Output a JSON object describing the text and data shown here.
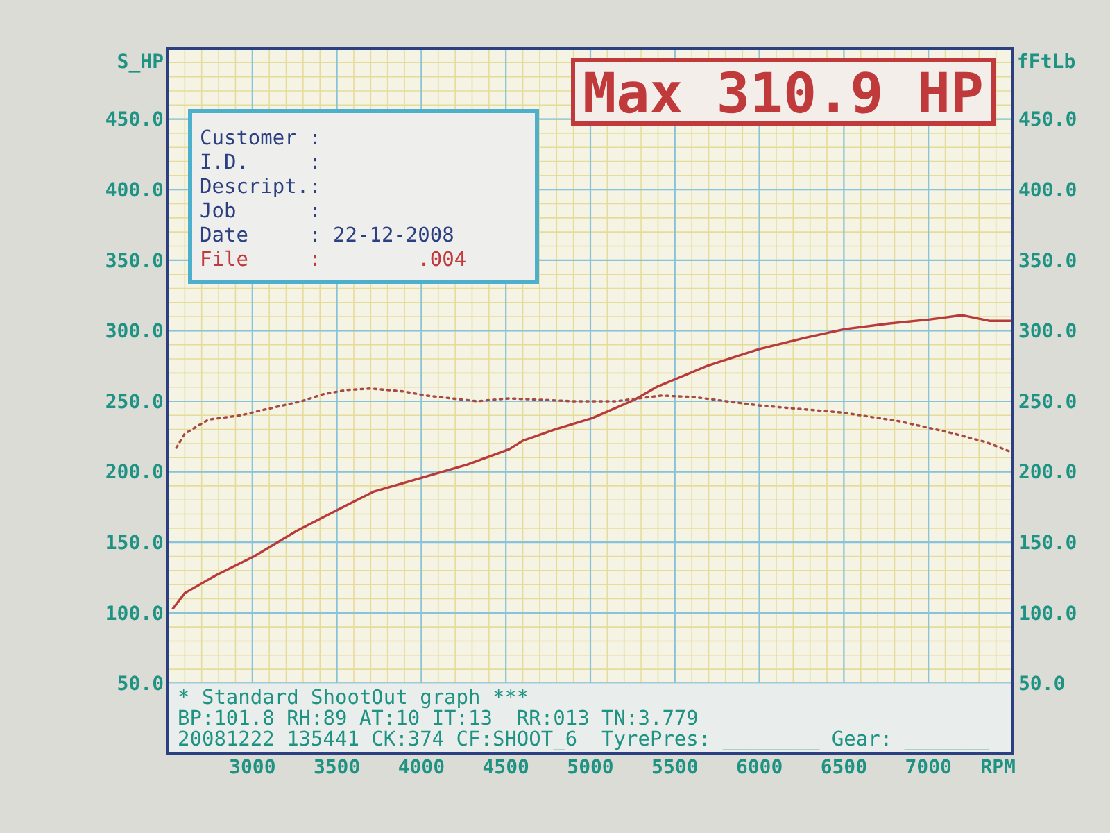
{
  "chart_data": {
    "type": "line",
    "xlabel": "RPM",
    "ylabel": "S_HP",
    "y2label": "fFtLb",
    "xlim": [
      2500,
      7500
    ],
    "xticks": [
      3000,
      3500,
      4000,
      4500,
      5000,
      5500,
      6000,
      6500,
      7000
    ],
    "ylim": [
      0,
      500
    ],
    "yticks": [
      {
        "value": 50,
        "label": "50.0"
      },
      {
        "value": 100,
        "label": "100.0"
      },
      {
        "value": 150,
        "label": "150.0"
      },
      {
        "value": 200,
        "label": "200.0"
      },
      {
        "value": 250,
        "label": "250.0"
      },
      {
        "value": 300,
        "label": "300.0"
      },
      {
        "value": 350,
        "label": "350.0"
      },
      {
        "value": 400,
        "label": "400.0"
      },
      {
        "value": 450,
        "label": "450.0"
      }
    ],
    "y2lim": [
      0,
      500
    ],
    "y2ticks": [
      {
        "value": 50,
        "label": "50.0"
      },
      {
        "value": 100,
        "label": "100.0"
      },
      {
        "value": 150,
        "label": "150.0"
      },
      {
        "value": 200,
        "label": "200.0"
      },
      {
        "value": 250,
        "label": "250.0"
      },
      {
        "value": 300,
        "label": "300.0"
      },
      {
        "value": 350,
        "label": "350.0"
      },
      {
        "value": 400,
        "label": "400.0"
      },
      {
        "value": 450,
        "label": "450.0"
      }
    ],
    "grid": true,
    "series": [
      {
        "color": "#b83a3a",
        "line_style": "solid",
        "x": [
          2530,
          2600,
          2790,
          3010,
          3260,
          3520,
          3720,
          4010,
          4270,
          4520,
          4600,
          4790,
          5010,
          5260,
          5390,
          5510,
          5690,
          6000,
          6270,
          6500,
          6760,
          7010,
          7200,
          7360,
          7490
        ],
        "values": [
          103,
          114,
          127,
          140,
          158,
          174,
          186,
          196,
          205,
          216,
          222,
          230,
          238,
          251,
          260,
          266,
          275,
          287,
          295,
          301,
          305,
          308,
          311,
          307,
          307
        ]
      },
      {
        "color": "#a84a44",
        "line_style": "dotted",
        "axis": "y2",
        "x": [
          2550,
          2600,
          2740,
          2930,
          3070,
          3290,
          3420,
          3560,
          3700,
          3890,
          4030,
          4330,
          4520,
          4710,
          4900,
          5150,
          5420,
          5610,
          6000,
          6490,
          6820,
          7120,
          7340,
          7490
        ],
        "values": [
          217,
          227,
          237,
          240,
          244,
          250,
          255,
          258,
          259,
          257,
          254,
          250,
          252,
          251,
          250,
          250,
          254,
          253,
          247,
          242,
          236,
          228,
          221,
          214
        ]
      }
    ],
    "annotations": [
      "Customer :",
      "I.D.     :",
      "Descript.:",
      "Job      :",
      "Date     : 22-12-2008",
      "File     :        .004",
      "Max 310.9 HP",
      "* Standard ShootOut graph ***",
      "BP:101.8 RH:89 AT:10 IT:13  RR:013 TN:3.779",
      "20081222 135441 CK:374 CF:SHOOT_6  TyrePres: ________ Gear: _______"
    ]
  }
}
